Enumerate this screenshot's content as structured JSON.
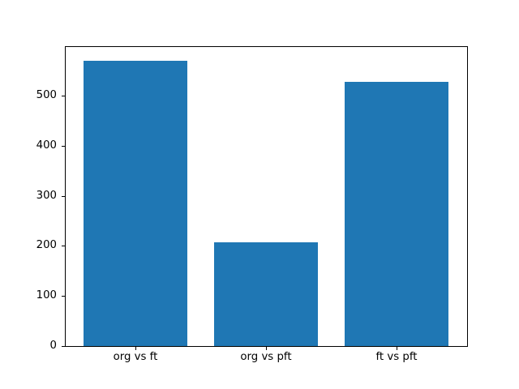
{
  "figure": {
    "background_color": "#ffffff",
    "axes_background_color": "#ffffff",
    "spine_color": "#000000",
    "tick_color": "#000000",
    "tick_label_color": "#000000"
  },
  "chart_data": {
    "type": "bar",
    "categories": [
      "org vs ft",
      "org vs pft",
      "ft vs pft"
    ],
    "values": [
      570,
      207,
      527
    ],
    "title": "",
    "xlabel": "",
    "ylabel": "",
    "ylim": [
      0,
      598.5
    ],
    "xlim": [
      -0.54,
      2.54
    ],
    "yticks": [
      0,
      100,
      200,
      300,
      400,
      500
    ],
    "x_positions": [
      0,
      1,
      2
    ],
    "bar_width": 0.8,
    "bar_color": "#1f77b4",
    "grid": false,
    "legend": null
  }
}
